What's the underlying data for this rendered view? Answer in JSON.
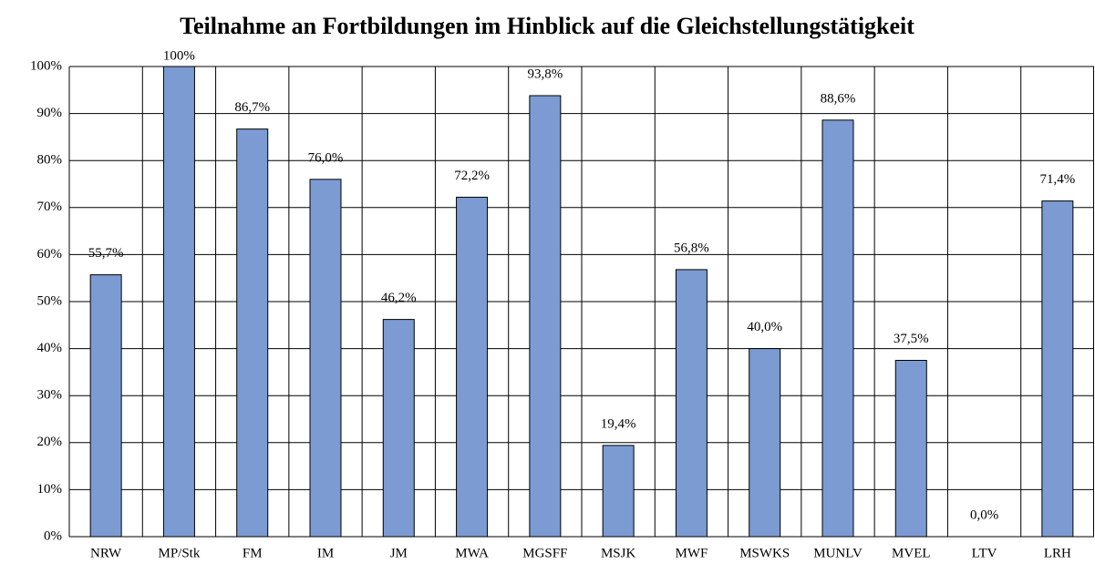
{
  "chart_data": {
    "type": "bar",
    "title": "Teilnahme an Fortbildungen im Hinblick auf die Gleichstellungstätigkeit",
    "categories": [
      "NRW",
      "MP/Stk",
      "FM",
      "IM",
      "JM",
      "MWA",
      "MGSFF",
      "MSJK",
      "MWF",
      "MSWKS",
      "MUNLV",
      "MVEL",
      "LTV",
      "LRH"
    ],
    "values": [
      55.7,
      100,
      86.7,
      76.0,
      46.2,
      72.2,
      93.8,
      19.4,
      56.8,
      40.0,
      88.6,
      37.5,
      0.0,
      71.4
    ],
    "value_labels": [
      "55,7%",
      "100%",
      "86,7%",
      "76,0%",
      "46,2%",
      "72,2%",
      "93,8%",
      "19,4%",
      "56,8%",
      "40,0%",
      "88,6%",
      "37,5%",
      "0,0%",
      "71,4%"
    ],
    "color": "#7b9bd2",
    "ylim": [
      0,
      100
    ],
    "yticks": [
      {
        "value": 0,
        "label": "0%"
      },
      {
        "value": 10,
        "label": "10%"
      },
      {
        "value": 20,
        "label": "20%"
      },
      {
        "value": 30,
        "label": "30%"
      },
      {
        "value": 40,
        "label": "40%"
      },
      {
        "value": 50,
        "label": "50%"
      },
      {
        "value": 60,
        "label": "60%"
      },
      {
        "value": 70,
        "label": "70%"
      },
      {
        "value": 80,
        "label": "80%"
      },
      {
        "value": 90,
        "label": "90%"
      },
      {
        "value": 100,
        "label": "100%"
      }
    ],
    "grid": true
  }
}
